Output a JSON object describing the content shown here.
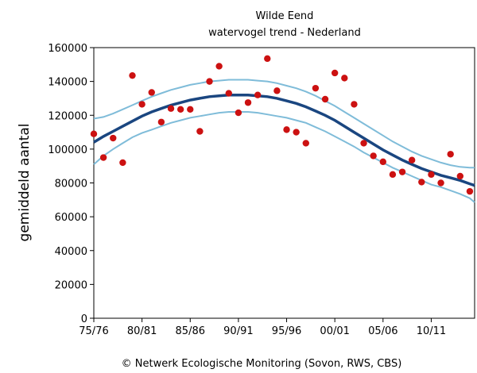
{
  "chart_data": {
    "type": "scatter",
    "title": "Wilde Eend",
    "subtitle": "watervogel trend - Nederland",
    "ylabel": "gemiddeld aantal",
    "xlabel": "",
    "credit": "© Netwerk Ecologische Monitoring (Sovon, RWS, CBS)",
    "xlim": [
      1975.5,
      2015
    ],
    "ylim": [
      0,
      160000
    ],
    "y_ticks": [
      0,
      20000,
      40000,
      60000,
      80000,
      100000,
      120000,
      140000,
      160000
    ],
    "x_ticks": [
      {
        "value": 1975.5,
        "label": "75/76"
      },
      {
        "value": 1980.5,
        "label": "80/81"
      },
      {
        "value": 1985.5,
        "label": "85/86"
      },
      {
        "value": 1990.5,
        "label": "90/91"
      },
      {
        "value": 1995.5,
        "label": "95/96"
      },
      {
        "value": 2000.5,
        "label": "00/01"
      },
      {
        "value": 2005.5,
        "label": "05/06"
      },
      {
        "value": 2010.5,
        "label": "10/11"
      }
    ],
    "grid": false,
    "colors": {
      "points": "#cc1111",
      "trend": "#1a4680",
      "band": "#7fbcd9"
    },
    "series": [
      {
        "type": "scatter",
        "x": [
          1975.5,
          1976.5,
          1977.5,
          1978.5,
          1979.5,
          1980.5,
          1981.5,
          1982.5,
          1983.5,
          1984.5,
          1985.5,
          1986.5,
          1987.5,
          1988.5,
          1989.5,
          1990.5,
          1991.5,
          1992.5,
          1993.5,
          1994.5,
          1995.5,
          1996.5,
          1997.5,
          1998.5,
          1999.5,
          2000.5,
          2001.5,
          2002.5,
          2003.5,
          2004.5,
          2005.5,
          2006.5,
          2007.5,
          2008.5,
          2009.5,
          2010.5,
          2011.5,
          2012.5,
          2013.5,
          2014.5
        ],
        "y": [
          109000,
          95000,
          106500,
          92000,
          143500,
          126500,
          133500,
          116000,
          124000,
          123500,
          123500,
          110500,
          140000,
          149000,
          133000,
          121500,
          127500,
          132000,
          153500,
          134500,
          111500,
          110000,
          103500,
          136000,
          129500,
          145000,
          142000,
          126500,
          103500,
          96000,
          92500,
          85000,
          86500,
          93500,
          80500,
          85000,
          80000,
          97000,
          84000,
          75000
        ]
      },
      {
        "type": "line",
        "role": "trend",
        "x": [
          1975.5,
          1976.5,
          1977.5,
          1978.5,
          1979.5,
          1980.5,
          1981.5,
          1982.5,
          1983.5,
          1984.5,
          1985.5,
          1986.5,
          1987.5,
          1988.5,
          1989.5,
          1990.5,
          1991.5,
          1992.5,
          1993.5,
          1994.5,
          1995.5,
          1996.5,
          1997.5,
          1998.5,
          1999.5,
          2000.5,
          2001.5,
          2002.5,
          2003.5,
          2004.5,
          2005.5,
          2006.5,
          2007.5,
          2008.5,
          2009.5,
          2010.5,
          2011.5,
          2012.5,
          2013.5,
          2014.5,
          2015
        ],
        "y": [
          104000,
          107500,
          110500,
          113500,
          116500,
          119500,
          122000,
          124000,
          126000,
          127500,
          129000,
          130000,
          131000,
          131500,
          132000,
          132000,
          132000,
          131500,
          131000,
          130000,
          128500,
          127000,
          125000,
          122500,
          120000,
          117000,
          113500,
          110000,
          106500,
          103000,
          99500,
          96500,
          93500,
          91000,
          88500,
          86500,
          84500,
          83000,
          81500,
          79500,
          78500
        ]
      },
      {
        "type": "line",
        "role": "upper-band",
        "x": [
          1975.5,
          1976.5,
          1977.5,
          1978.5,
          1979.5,
          1980.5,
          1981.5,
          1982.5,
          1983.5,
          1984.5,
          1985.5,
          1986.5,
          1987.5,
          1988.5,
          1989.5,
          1990.5,
          1991.5,
          1992.5,
          1993.5,
          1994.5,
          1995.5,
          1996.5,
          1997.5,
          1998.5,
          1999.5,
          2000.5,
          2001.5,
          2002.5,
          2003.5,
          2004.5,
          2005.5,
          2006.5,
          2007.5,
          2008.5,
          2009.5,
          2010.5,
          2011.5,
          2012.5,
          2013.5,
          2014.5,
          2015
        ],
        "y": [
          118000,
          119000,
          121000,
          123500,
          126000,
          128500,
          131000,
          133000,
          135000,
          136500,
          138000,
          139000,
          140000,
          140500,
          141000,
          141000,
          141000,
          140500,
          140000,
          139000,
          137500,
          136000,
          134000,
          131500,
          128500,
          125500,
          122000,
          118500,
          115000,
          111500,
          108000,
          104500,
          101500,
          98500,
          96000,
          94000,
          92000,
          90500,
          89500,
          89000,
          89000
        ]
      },
      {
        "type": "line",
        "role": "lower-band",
        "x": [
          1975.5,
          1976.5,
          1977.5,
          1978.5,
          1979.5,
          1980.5,
          1981.5,
          1982.5,
          1983.5,
          1984.5,
          1985.5,
          1986.5,
          1987.5,
          1988.5,
          1989.5,
          1990.5,
          1991.5,
          1992.5,
          1993.5,
          1994.5,
          1995.5,
          1996.5,
          1997.5,
          1998.5,
          1999.5,
          2000.5,
          2001.5,
          2002.5,
          2003.5,
          2004.5,
          2005.5,
          2006.5,
          2007.5,
          2008.5,
          2009.5,
          2010.5,
          2011.5,
          2012.5,
          2013.5,
          2014.5,
          2015
        ],
        "y": [
          91000,
          96000,
          100000,
          103500,
          107000,
          109500,
          111500,
          113500,
          115500,
          117000,
          118500,
          119500,
          120500,
          121500,
          122000,
          122000,
          122000,
          121500,
          120500,
          119500,
          118500,
          117000,
          115500,
          113000,
          110500,
          107500,
          104500,
          101500,
          98000,
          95000,
          92000,
          89000,
          86500,
          84000,
          81500,
          79000,
          77500,
          75500,
          73500,
          71000,
          68500
        ]
      }
    ]
  }
}
